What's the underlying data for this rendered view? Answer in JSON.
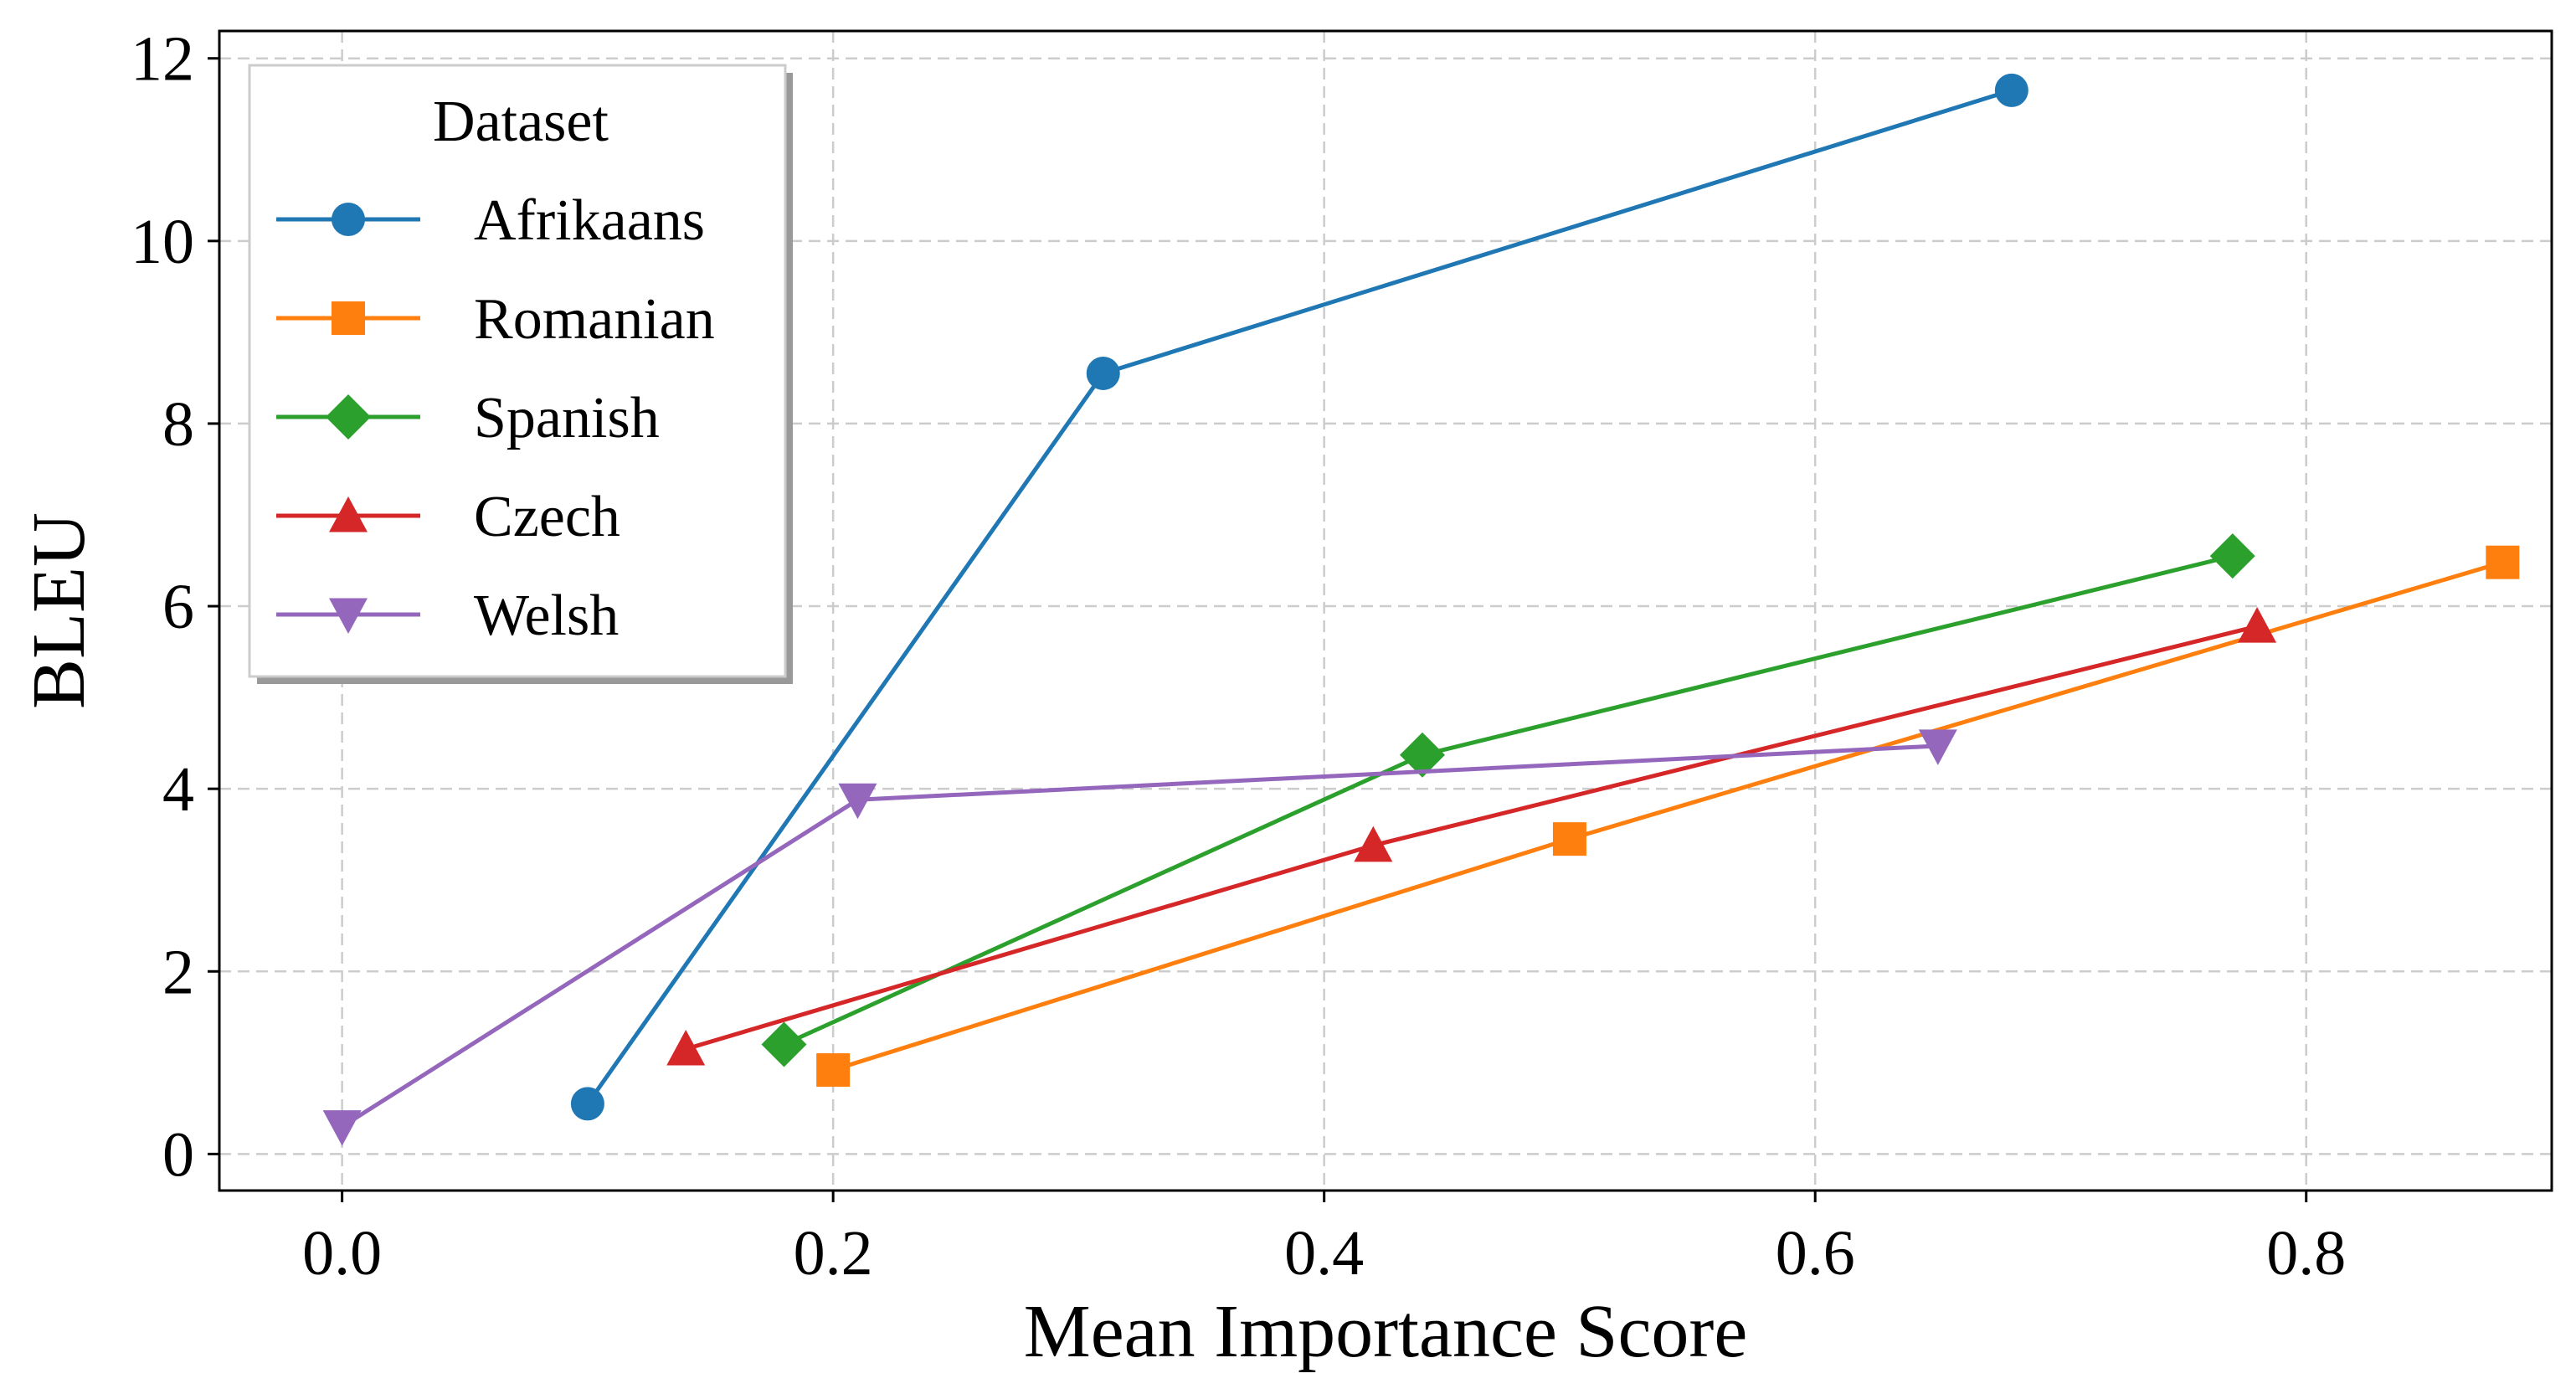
{
  "chart_data": {
    "type": "line",
    "title": "",
    "xlabel": "Mean Importance Score",
    "ylabel": "BLEU",
    "xlim": [
      -0.05,
      0.9
    ],
    "ylim": [
      -0.4,
      12.3
    ],
    "xticks": [
      0.0,
      0.2,
      0.4,
      0.6,
      0.8
    ],
    "xtick_labels": [
      "0.0",
      "0.2",
      "0.4",
      "0.6",
      "0.8"
    ],
    "yticks": [
      0,
      2,
      4,
      6,
      8,
      10,
      12
    ],
    "ytick_labels": [
      "0",
      "2",
      "4",
      "6",
      "8",
      "10",
      "12"
    ],
    "grid": true,
    "legend": {
      "title": "Dataset",
      "placement": "top-left"
    },
    "series": [
      {
        "name": "Afrikaans",
        "color": "#1f77b4",
        "marker": "circle",
        "x": [
          0.1,
          0.31,
          0.68
        ],
        "y": [
          0.55,
          8.55,
          11.65
        ]
      },
      {
        "name": "Romanian",
        "color": "#ff7f0e",
        "marker": "square",
        "x": [
          0.2,
          0.5,
          0.88
        ],
        "y": [
          0.92,
          3.45,
          6.48
        ]
      },
      {
        "name": "Spanish",
        "color": "#2ca02c",
        "marker": "diamond",
        "x": [
          0.18,
          0.44,
          0.77
        ],
        "y": [
          1.2,
          4.37,
          6.55
        ]
      },
      {
        "name": "Czech",
        "color": "#d62728",
        "marker": "triangle-up",
        "x": [
          0.14,
          0.42,
          0.78
        ],
        "y": [
          1.15,
          3.38,
          5.78
        ]
      },
      {
        "name": "Welsh",
        "color": "#9467bd",
        "marker": "triangle-down",
        "x": [
          0.0,
          0.21,
          0.65
        ],
        "y": [
          0.3,
          3.88,
          4.47
        ]
      }
    ]
  }
}
